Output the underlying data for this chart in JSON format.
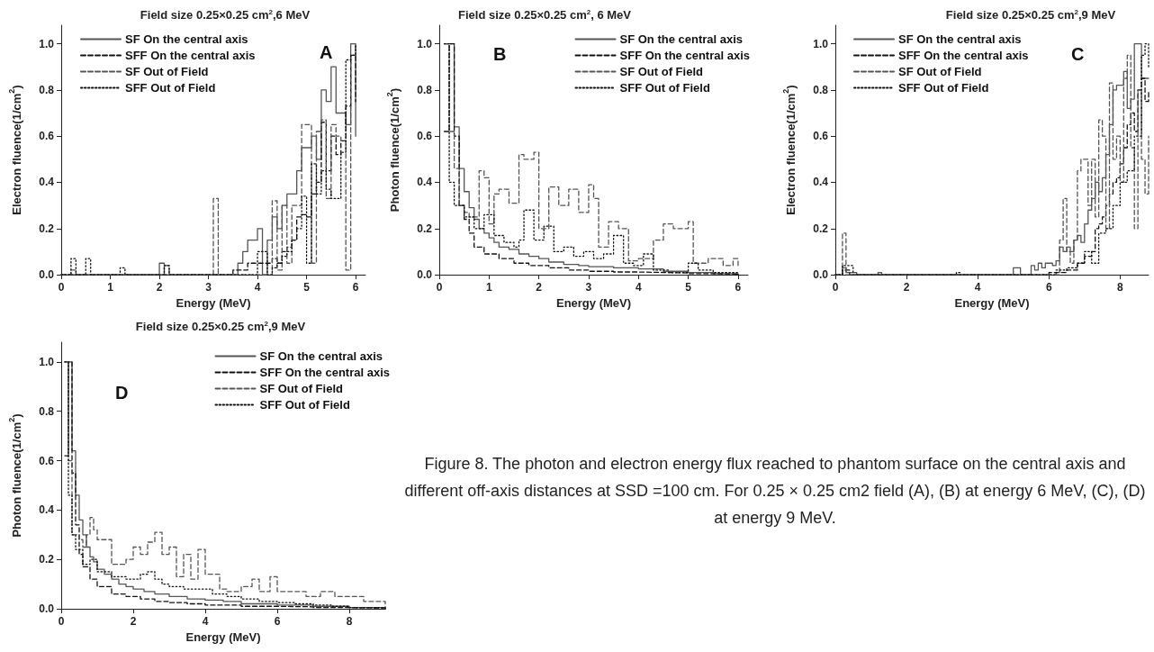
{
  "chart_data": [
    {
      "type": "step",
      "title": "Field size 0.25×0.25 cm$^{2}$,6 MeV",
      "xlabel": "Energy (MeV)",
      "ylabel": "Electron fluence(1/cm$^{2}$)",
      "annotations": [
        "A"
      ],
      "xlim": [
        0,
        6.2
      ],
      "xticks": [
        0,
        1,
        2,
        3,
        4,
        5,
        6
      ],
      "ylim": [
        0,
        1.08
      ],
      "yticks": [
        {
          "value": 0,
          "label": "0.0"
        },
        {
          "value": 0.2,
          "label": "0.2"
        },
        {
          "value": 0.4,
          "label": "0.4"
        },
        {
          "value": 0.6,
          "label": "0.6"
        },
        {
          "value": 0.8,
          "label": "0.8"
        },
        {
          "value": 1,
          "label": "1.0"
        }
      ],
      "grid": false,
      "legend": "top left",
      "marker": "none",
      "series": [
        {
          "name": "SF On the central axis",
          "color": "#555555",
          "line_style": "solid",
          "x": [
            0,
            2.0,
            2.1,
            3.6,
            3.7,
            3.8,
            4.0,
            4.1,
            4.2,
            4.3,
            4.4,
            4.5,
            4.6,
            4.7,
            4.8,
            4.9,
            5.0,
            5.1,
            5.2,
            5.3,
            5.4,
            5.5,
            5.6,
            5.7,
            5.8,
            5.9,
            6.0
          ],
          "values": [
            0,
            0.05,
            0,
            0.05,
            0.1,
            0.15,
            0.2,
            0,
            0.15,
            0.25,
            0.2,
            0.3,
            0.35,
            0.35,
            0.45,
            0.55,
            0.55,
            0.6,
            0.5,
            0.8,
            0.75,
            0.9,
            0.7,
            0.7,
            0.65,
            1.0,
            0.6
          ]
        },
        {
          "name": "SFF On the central axis",
          "color": "#111111",
          "line_style": "dashed",
          "x": [
            0,
            3.5,
            3.6,
            3.8,
            4.0,
            4.2,
            4.3,
            4.4,
            4.5,
            4.6,
            4.7,
            4.8,
            4.9,
            5.0,
            5.1,
            5.2,
            5.3,
            5.4,
            5.5,
            5.6,
            5.7,
            5.8,
            5.9,
            6.0
          ],
          "values": [
            0,
            0.02,
            0.02,
            0.05,
            0.05,
            0.05,
            0.07,
            0.05,
            0.1,
            0.12,
            0.15,
            0.25,
            0.26,
            0.25,
            0.35,
            0.4,
            0.66,
            0.45,
            0.6,
            0.52,
            0.58,
            0.73,
            0.95,
            0.75
          ]
        },
        {
          "name": "SF Out of Field",
          "color": "#555555",
          "line_style": "dashed",
          "x": [
            0,
            0.2,
            0.3,
            2.1,
            2.2,
            3.1,
            3.2,
            4.3,
            4.4,
            4.5,
            4.6,
            4.7,
            4.8,
            4.9,
            5.0,
            5.1,
            5.2,
            5.3,
            5.4,
            5.5,
            5.6,
            5.7,
            5.8,
            5.9,
            6.0
          ],
          "values": [
            0,
            0.02,
            0,
            0.04,
            0,
            0.33,
            0,
            0.32,
            0.02,
            0.3,
            0.05,
            0.3,
            0.3,
            0.65,
            0.65,
            0.05,
            0.62,
            0.67,
            0.33,
            0.65,
            0.6,
            0.58,
            0.02,
            0.95,
            1.0
          ]
        },
        {
          "name": "SFF Out of Field",
          "color": "#111111",
          "line_style": "dotted",
          "x": [
            0,
            0.2,
            0.3,
            0.5,
            0.6,
            1.2,
            1.3,
            2.1,
            2.2,
            4.0,
            4.1,
            4.2,
            4.3,
            4.4,
            4.5,
            4.6,
            4.7,
            4.8,
            4.9,
            5.0,
            5.1,
            5.2,
            5.3,
            5.4,
            5.5,
            5.6,
            5.7,
            5.8,
            5.9,
            6.0
          ],
          "values": [
            0,
            0.07,
            0,
            0.07,
            0,
            0.03,
            0,
            0.04,
            0,
            0.1,
            0.1,
            0.0,
            0.03,
            0.05,
            0.08,
            0.1,
            0.15,
            0.2,
            0.34,
            0.05,
            0.48,
            0.35,
            0.45,
            0.37,
            0.33,
            0.33,
            0.53,
            0.93,
            0.95,
            1.0
          ]
        }
      ]
    },
    {
      "type": "step",
      "title": "Field size 0.25×0.25 cm$^{2}$, 6 MeV",
      "xlabel": "Energy (MeV)",
      "ylabel": "Photon fluence(1/cm$^{2}$)",
      "annotations": [
        "B"
      ],
      "xlim": [
        0,
        6.2
      ],
      "xticks": [
        0,
        1,
        2,
        3,
        4,
        5,
        6
      ],
      "ylim": [
        0,
        1.08
      ],
      "yticks": [
        {
          "value": 0,
          "label": "0.0"
        },
        {
          "value": 0.2,
          "label": "0.2"
        },
        {
          "value": 0.4,
          "label": "0.4"
        },
        {
          "value": 0.6,
          "label": "0.6"
        },
        {
          "value": 0.8,
          "label": "0.8"
        },
        {
          "value": 1,
          "label": "1.0"
        }
      ],
      "grid": false,
      "legend": "top right",
      "marker": "none",
      "series": [
        {
          "name": "SF On the central axis",
          "color": "#555555",
          "line_style": "solid",
          "x": [
            0.1,
            0.3,
            0.4,
            0.5,
            0.6,
            0.7,
            0.8,
            0.9,
            1.0,
            1.1,
            1.2,
            1.4,
            1.6,
            1.8,
            2.0,
            2.2,
            2.5,
            2.8,
            3.0,
            3.5,
            4.0,
            4.5,
            5.0,
            5.5,
            6.0
          ],
          "values": [
            1.0,
            0.64,
            0.46,
            0.36,
            0.29,
            0.24,
            0.2,
            0.18,
            0.16,
            0.14,
            0.12,
            0.11,
            0.09,
            0.08,
            0.07,
            0.055,
            0.045,
            0.04,
            0.035,
            0.03,
            0.025,
            0.015,
            0.01,
            0.005,
            0.0
          ]
        },
        {
          "name": "SFF On the central axis",
          "color": "#111111",
          "line_style": "dashed",
          "x": [
            0.1,
            0.2,
            0.3,
            0.4,
            0.5,
            0.6,
            0.7,
            0.9,
            1.2,
            1.5,
            1.8,
            2.2,
            2.6,
            3.0,
            3.5,
            4.0,
            4.5,
            5.0,
            5.5,
            6.0
          ],
          "values": [
            0.62,
            1.0,
            0.6,
            0.3,
            0.24,
            0.18,
            0.12,
            0.09,
            0.07,
            0.05,
            0.04,
            0.03,
            0.02,
            0.015,
            0.012,
            0.01,
            0.008,
            0.005,
            0.003,
            0.0
          ]
        },
        {
          "name": "SF Out of Field",
          "color": "#555555",
          "line_style": "dashed",
          "x": [
            0.1,
            0.2,
            0.3,
            0.4,
            0.5,
            0.6,
            0.8,
            0.9,
            1.0,
            1.1,
            1.2,
            1.4,
            1.6,
            1.7,
            1.9,
            2.0,
            2.2,
            2.4,
            2.6,
            2.8,
            3.0,
            3.1,
            3.2,
            3.4,
            3.6,
            3.8,
            4.0,
            4.3,
            4.5,
            4.7,
            5.0,
            5.1,
            5.4,
            5.7,
            5.9,
            6.0
          ],
          "values": [
            1.0,
            0.62,
            0.46,
            0.3,
            0.27,
            0.25,
            0.45,
            0.42,
            0.22,
            0.35,
            0.37,
            0.31,
            0.52,
            0.5,
            0.53,
            0.2,
            0.38,
            0.3,
            0.37,
            0.27,
            0.39,
            0.33,
            0.12,
            0.23,
            0.2,
            0.06,
            0.07,
            0.15,
            0.22,
            0.2,
            0.23,
            0.05,
            0.07,
            0.04,
            0.07,
            0.04
          ]
        },
        {
          "name": "SFF Out of Field",
          "color": "#111111",
          "line_style": "dotted",
          "x": [
            0.1,
            0.2,
            0.3,
            0.5,
            0.7,
            0.9,
            1.1,
            1.3,
            1.5,
            1.6,
            1.7,
            1.9,
            2.1,
            2.3,
            2.5,
            2.7,
            2.9,
            3.1,
            3.3,
            3.5,
            3.7,
            3.9,
            4.1,
            4.3,
            4.6,
            4.8,
            5.0,
            5.2,
            5.5,
            6.0
          ],
          "values": [
            1.0,
            0.4,
            0.3,
            0.25,
            0.2,
            0.26,
            0.17,
            0.14,
            0.12,
            0.15,
            0.28,
            0.15,
            0.21,
            0.1,
            0.12,
            0.08,
            0.1,
            0.07,
            0.09,
            0.17,
            0.05,
            0.04,
            0.09,
            0.02,
            0.01,
            0.01,
            0.05,
            0.02,
            0.01,
            0.0
          ]
        }
      ]
    },
    {
      "type": "step",
      "title": "Field size 0.25×0.25 cm$^{2}$,9 MeV",
      "xlabel": "Energy (MeV)",
      "ylabel": "Electron fluence(1/cm$^{2}$)",
      "annotations": [
        "C"
      ],
      "xlim": [
        0,
        8.8
      ],
      "xticks": [
        0,
        2,
        4,
        6,
        8
      ],
      "ylim": [
        0,
        1.08
      ],
      "yticks": [
        {
          "value": 0,
          "label": "0.0"
        },
        {
          "value": 0.2,
          "label": "0.2"
        },
        {
          "value": 0.4,
          "label": "0.4"
        },
        {
          "value": 0.6,
          "label": "0.6"
        },
        {
          "value": 0.8,
          "label": "0.8"
        },
        {
          "value": 1,
          "label": "1.0"
        }
      ],
      "grid": false,
      "legend": "top left",
      "marker": "none",
      "series": [
        {
          "name": "SF On the central axis",
          "color": "#555555",
          "line_style": "solid",
          "x": [
            0,
            0.2,
            0.3,
            0.6,
            1.2,
            1.3,
            5.0,
            5.2,
            5.5,
            5.6,
            5.7,
            5.8,
            5.9,
            6.0,
            6.1,
            6.2,
            6.3,
            6.4,
            6.5,
            6.6,
            6.7,
            6.8,
            6.9,
            7.0,
            7.1,
            7.2,
            7.3,
            7.4,
            7.5,
            7.6,
            7.7,
            7.8,
            7.9,
            8.0,
            8.1,
            8.2,
            8.3,
            8.4,
            8.5,
            8.6,
            8.8
          ],
          "values": [
            0,
            0.03,
            0.01,
            0,
            0.01,
            0,
            0.03,
            0,
            0.04,
            0.02,
            0.05,
            0.03,
            0.05,
            0.05,
            0.04,
            0.06,
            0.12,
            0.1,
            0.12,
            0.1,
            0.15,
            0.17,
            0.14,
            0.22,
            0.28,
            0.33,
            0.4,
            0.36,
            0.42,
            0.52,
            0.65,
            0.8,
            0.82,
            0.82,
            0.88,
            0.72,
            0.76,
            1.0,
            1.0,
            0.85,
            0.85
          ]
        },
        {
          "name": "SFF On the central axis",
          "color": "#111111",
          "line_style": "dashed",
          "x": [
            0,
            0.2,
            0.4,
            6.0,
            6.5,
            6.8,
            7.0,
            7.2,
            7.3,
            7.4,
            7.5,
            7.6,
            7.7,
            7.8,
            7.9,
            8.0,
            8.1,
            8.2,
            8.3,
            8.4,
            8.5,
            8.6,
            8.7,
            8.8
          ],
          "values": [
            0,
            0.02,
            0,
            0.01,
            0.02,
            0.05,
            0.08,
            0.1,
            0.2,
            0.22,
            0.25,
            0.3,
            0.35,
            0.4,
            0.42,
            0.48,
            0.55,
            0.65,
            0.7,
            0.62,
            0.8,
            0.85,
            0.75,
            0.8
          ]
        },
        {
          "name": "SF Out of Field",
          "color": "#555555",
          "line_style": "dashed",
          "x": [
            0,
            0.2,
            0.3,
            6.3,
            6.4,
            6.5,
            6.6,
            6.7,
            6.8,
            6.9,
            7.0,
            7.1,
            7.2,
            7.3,
            7.4,
            7.5,
            7.6,
            7.7,
            7.8,
            7.9,
            8.0,
            8.1,
            8.2,
            8.3,
            8.4,
            8.5,
            8.6,
            8.7,
            8.8
          ],
          "values": [
            0,
            0.18,
            0,
            0.15,
            0.33,
            0.1,
            0.05,
            0.15,
            0.45,
            0.5,
            0.5,
            0.3,
            0.5,
            0.25,
            0.67,
            0.6,
            0.2,
            0.83,
            0.5,
            0.6,
            0.4,
            0.85,
            0.95,
            0.55,
            0.2,
            0.8,
            0.5,
            0.35,
            0.6
          ]
        },
        {
          "name": "SFF Out of Field",
          "color": "#111111",
          "line_style": "dotted",
          "x": [
            0,
            0.2,
            0.5,
            3.4,
            3.5,
            6.2,
            6.5,
            6.8,
            7.0,
            7.2,
            7.4,
            7.6,
            7.8,
            8.0,
            8.2,
            8.4,
            8.6,
            8.7,
            8.8
          ],
          "values": [
            0,
            0.04,
            0,
            0.01,
            0,
            0.02,
            0.03,
            0.05,
            0.1,
            0.05,
            0.18,
            0.2,
            0.3,
            0.4,
            0.45,
            0.6,
            0.95,
            1.0,
            0.9
          ]
        }
      ]
    },
    {
      "type": "step",
      "title": "Field size 0.25×0.25 cm$^{2}$,9 MeV",
      "xlabel": "Energy (MeV)",
      "ylabel": "Photon fluence(1/cm$^{2}$)",
      "annotations": [
        "D"
      ],
      "xlim": [
        0,
        9
      ],
      "xticks": [
        0,
        2,
        4,
        6,
        8
      ],
      "ylim": [
        0,
        1.08
      ],
      "yticks": [
        {
          "value": 0,
          "label": "0.0"
        },
        {
          "value": 0.2,
          "label": "0.2"
        },
        {
          "value": 0.4,
          "label": "0.4"
        },
        {
          "value": 0.6,
          "label": "0.6"
        },
        {
          "value": 0.8,
          "label": "0.8"
        },
        {
          "value": 1,
          "label": "1.0"
        }
      ],
      "grid": false,
      "legend": "top right",
      "marker": "none",
      "series": [
        {
          "name": "SF On the central axis",
          "color": "#555555",
          "line_style": "solid",
          "x": [
            0.1,
            0.3,
            0.4,
            0.5,
            0.6,
            0.7,
            0.8,
            0.9,
            1.0,
            1.2,
            1.4,
            1.6,
            1.8,
            2.0,
            2.3,
            2.6,
            3.0,
            3.5,
            4.0,
            4.5,
            5.0,
            6.0,
            7.0,
            8.0,
            9.0
          ],
          "values": [
            1.0,
            0.64,
            0.46,
            0.36,
            0.3,
            0.25,
            0.21,
            0.19,
            0.16,
            0.14,
            0.12,
            0.1,
            0.09,
            0.08,
            0.07,
            0.06,
            0.05,
            0.04,
            0.035,
            0.03,
            0.02,
            0.015,
            0.01,
            0.005,
            0
          ]
        },
        {
          "name": "SFF On the central axis",
          "color": "#111111",
          "line_style": "dashed",
          "x": [
            0.1,
            0.2,
            0.3,
            0.4,
            0.5,
            0.6,
            0.8,
            1.0,
            1.4,
            1.8,
            2.2,
            2.6,
            3.0,
            3.5,
            4.0,
            5.0,
            6.0,
            7.0,
            8.0,
            9.0
          ],
          "values": [
            0.62,
            1.0,
            0.55,
            0.34,
            0.22,
            0.17,
            0.12,
            0.09,
            0.06,
            0.05,
            0.04,
            0.03,
            0.025,
            0.02,
            0.015,
            0.01,
            0.008,
            0.005,
            0.003,
            0
          ]
        },
        {
          "name": "SF Out of Field",
          "color": "#555555",
          "line_style": "dashed",
          "x": [
            0.1,
            0.2,
            0.3,
            0.5,
            0.6,
            0.7,
            0.8,
            0.9,
            1.0,
            1.2,
            1.4,
            1.6,
            1.8,
            2.0,
            2.2,
            2.4,
            2.6,
            2.8,
            3.0,
            3.2,
            3.4,
            3.6,
            3.8,
            4.0,
            4.2,
            4.4,
            4.6,
            5.0,
            5.3,
            5.5,
            5.8,
            6.0,
            6.4,
            6.8,
            7.2,
            7.6,
            8.0,
            8.4,
            9.0
          ],
          "values": [
            1.0,
            0.6,
            0.3,
            0.28,
            0.25,
            0.3,
            0.37,
            0.32,
            0.28,
            0.28,
            0.18,
            0.18,
            0.2,
            0.25,
            0.22,
            0.27,
            0.31,
            0.22,
            0.25,
            0.13,
            0.22,
            0.12,
            0.24,
            0.14,
            0.14,
            0.08,
            0.07,
            0.09,
            0.12,
            0.07,
            0.13,
            0.07,
            0.07,
            0.05,
            0.07,
            0.05,
            0.05,
            0.03,
            0.0
          ]
        },
        {
          "name": "SFF Out of Field",
          "color": "#111111",
          "line_style": "dotted",
          "x": [
            0.1,
            0.2,
            0.3,
            0.4,
            0.6,
            0.8,
            1.0,
            1.4,
            1.8,
            2.2,
            2.4,
            2.6,
            2.8,
            3.0,
            3.4,
            3.8,
            4.2,
            4.6,
            5.0,
            5.5,
            6.0,
            6.5,
            7.0,
            7.5,
            8.0,
            9.0
          ],
          "values": [
            1.0,
            0.46,
            0.3,
            0.24,
            0.18,
            0.2,
            0.15,
            0.13,
            0.12,
            0.14,
            0.15,
            0.12,
            0.1,
            0.09,
            0.08,
            0.08,
            0.06,
            0.05,
            0.04,
            0.03,
            0.025,
            0.02,
            0.015,
            0.01,
            0.005,
            0
          ]
        }
      ]
    },
    {
      "type": "other",
      "annotations": [
        "Figure 8. The photon and electron energy flux reached to phantom surface on the central axis and different off-axis distances at SSD =100 cm. For 0.25 × 0.25 cm2 field (A), (B) at energy 6 MeV, (C), (D) at energy 9 MeV."
      ]
    }
  ]
}
